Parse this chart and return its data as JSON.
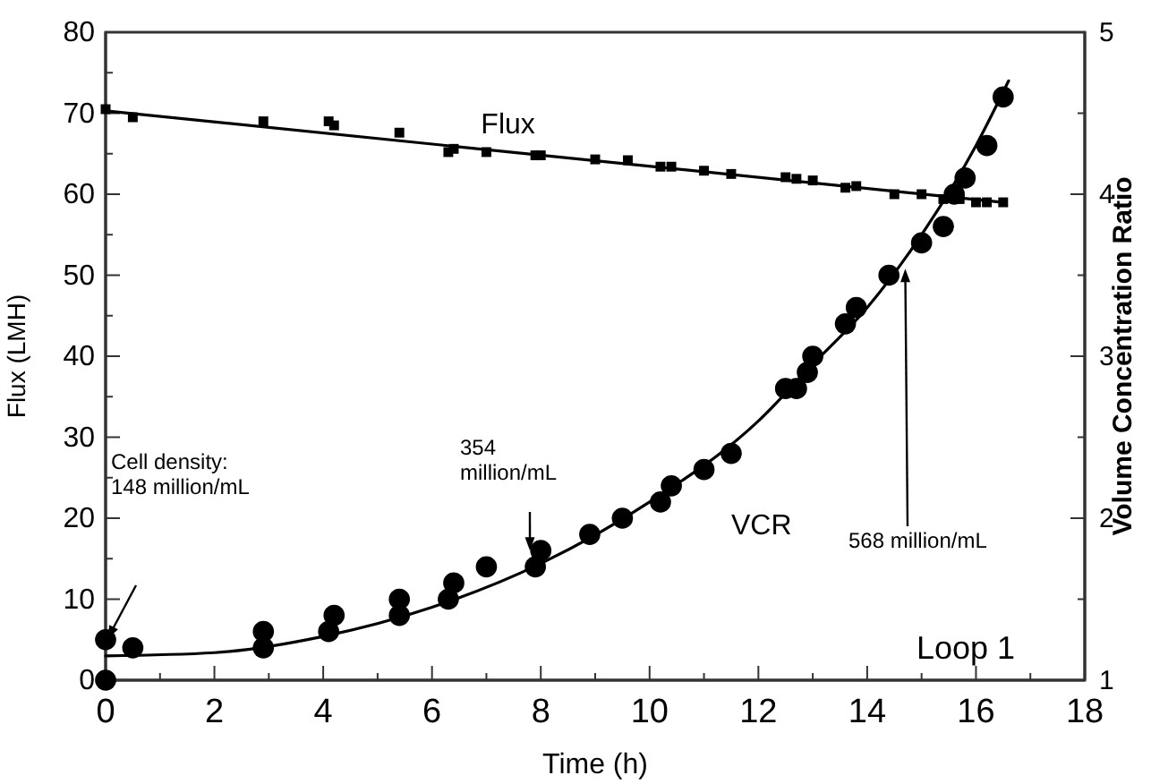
{
  "chart_data": {
    "type": "scatter",
    "xlabel": "Time (h)",
    "ylabel": "Flux (LMH)",
    "y2label": "Volume Concentration Ratio",
    "xlim": [
      0,
      18
    ],
    "xticks": [
      0,
      {
        "value": 1,
        "label": null
      },
      2,
      {
        "value": 3,
        "label": null
      },
      4,
      {
        "value": 5,
        "label": null
      },
      6,
      {
        "value": 7,
        "label": null
      },
      8,
      {
        "value": 9,
        "label": null
      },
      10,
      {
        "value": 11,
        "label": null
      },
      12,
      {
        "value": 13,
        "label": null
      },
      14,
      {
        "value": 15,
        "label": null
      },
      16,
      {
        "value": 17,
        "label": null
      },
      18
    ],
    "ylim": [
      0,
      80
    ],
    "yticks": [
      0,
      {
        "value": 5,
        "label": null
      },
      10,
      {
        "value": 15,
        "label": null
      },
      20,
      {
        "value": 25,
        "label": null
      },
      30,
      {
        "value": 35,
        "label": null
      },
      40,
      {
        "value": 45,
        "label": null
      },
      50,
      {
        "value": 55,
        "label": null
      },
      60,
      {
        "value": 65,
        "label": null
      },
      70,
      {
        "value": 75,
        "label": null
      },
      80
    ],
    "y2lim": [
      1,
      5
    ],
    "y2ticks": [
      1,
      {
        "value": 1.5,
        "label": null
      },
      2,
      {
        "value": 2.5,
        "label": null
      },
      3,
      {
        "value": 3.5,
        "label": null
      },
      4,
      {
        "value": 4.5,
        "label": null
      },
      5
    ],
    "grid": false,
    "legend": false,
    "series": [
      {
        "name": "Flux",
        "type": "scatter",
        "marker": "square",
        "color": "#000000",
        "x": [
          0,
          0.5,
          2.9,
          4.1,
          4.2,
          5.4,
          6.3,
          6.4,
          7.0,
          7.9,
          8.0,
          9.0,
          9.6,
          10.2,
          10.4,
          11.0,
          11.5,
          12.5,
          12.7,
          13.0,
          13.6,
          13.8,
          14.5,
          15.0,
          15.4,
          15.7,
          16.0,
          16.2,
          16.5
        ],
        "values": [
          70.5,
          69.5,
          69,
          69,
          68.5,
          67.6,
          65.2,
          65.6,
          65.2,
          64.8,
          64.8,
          64.3,
          64.2,
          63.4,
          63.4,
          62.9,
          62.5,
          62.1,
          61.9,
          61.7,
          60.8,
          61,
          60,
          60,
          59.4,
          59.4,
          59,
          59,
          59
        ]
      },
      {
        "type": "line",
        "line_style": "solid",
        "marker": "none",
        "color": "#000000",
        "x": [
          0,
          16.5
        ],
        "values": [
          70.3,
          59.0
        ]
      },
      {
        "name": "VCR",
        "type": "scatter",
        "marker": "circle",
        "axis": "y2",
        "color": "#000000",
        "x": [
          0,
          0,
          0.5,
          2.9,
          2.9,
          4.1,
          4.2,
          5.4,
          5.4,
          6.3,
          6.4,
          7.0,
          7.9,
          8.0,
          8.9,
          9.5,
          10.2,
          10.4,
          11.0,
          11.5,
          12.5,
          12.7,
          12.9,
          13.0,
          13.6,
          13.8,
          14.4,
          15.0,
          15.4,
          15.6,
          15.8,
          16.2,
          16.5
        ],
        "values": [
          1.0,
          1.25,
          1.2,
          1.2,
          1.3,
          1.3,
          1.4,
          1.4,
          1.5,
          1.5,
          1.6,
          1.7,
          1.7,
          1.8,
          1.9,
          2.0,
          2.1,
          2.2,
          2.3,
          2.4,
          2.8,
          2.8,
          2.9,
          3.0,
          3.2,
          3.3,
          3.5,
          3.7,
          3.8,
          4.0,
          4.1,
          4.3,
          4.6
        ]
      },
      {
        "type": "line",
        "line_style": "solid",
        "marker": "none",
        "axis": "y2",
        "color": "#000000",
        "x": [
          0,
          2,
          4,
          6,
          8,
          10,
          12,
          13,
          14,
          15,
          16,
          16.6
        ],
        "values": [
          1.15,
          1.17,
          1.27,
          1.45,
          1.72,
          2.1,
          2.6,
          2.95,
          3.3,
          3.75,
          4.3,
          4.7
        ]
      }
    ],
    "annotations": [
      "Cell density:\n148 million/mL",
      {
        "text": "354\nmillion/mL",
        "x": 7.8,
        "y": 16
      },
      {
        "text": "568 million/mL",
        "x": 14.7,
        "y": 50.8
      },
      "Loop 1"
    ]
  }
}
